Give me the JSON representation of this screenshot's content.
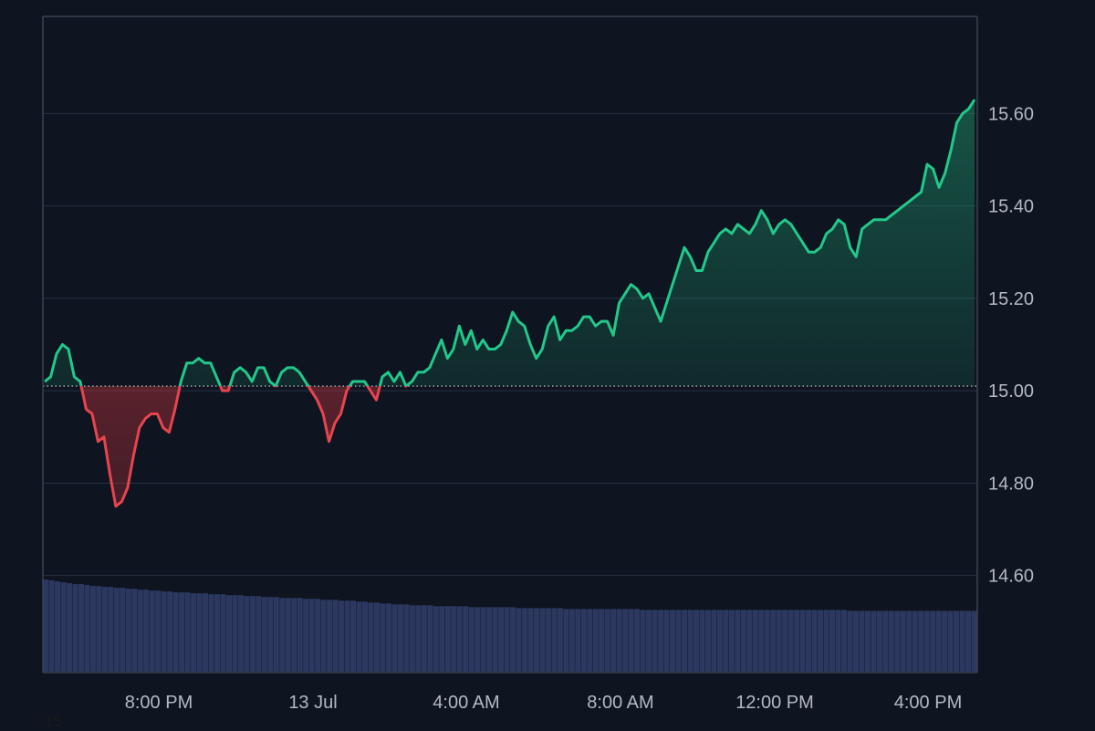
{
  "chart_data": {
    "type": "area",
    "title": "",
    "xlabel": "",
    "ylabel": "",
    "x_ticks": [
      "8:00 PM",
      "13 Jul",
      "4:00 AM",
      "8:00 AM",
      "12:00 PM",
      "4:00 PM"
    ],
    "y_ticks": [
      "14.60",
      "14.80",
      "15.00",
      "15.20",
      "15.40",
      "15.60"
    ],
    "y_tick_values": [
      14.6,
      14.8,
      15.0,
      15.2,
      15.4,
      15.6
    ],
    "ylim": [
      14.39,
      15.81
    ],
    "baseline": 15.01,
    "grid": true,
    "colors": {
      "background": "#0e1420",
      "grid": "#283142",
      "axis": "#3a4353",
      "above": "#22c88a",
      "below": "#e8444e",
      "volume": "#2c3860",
      "tick_text": "#b4bac4",
      "baseline": "#a8b0bc"
    },
    "price": [
      15.02,
      15.03,
      15.08,
      15.1,
      15.09,
      15.03,
      15.02,
      14.96,
      14.95,
      14.89,
      14.9,
      14.82,
      14.75,
      14.76,
      14.79,
      14.86,
      14.92,
      14.94,
      14.95,
      14.95,
      14.92,
      14.91,
      14.96,
      15.02,
      15.06,
      15.06,
      15.07,
      15.06,
      15.06,
      15.03,
      15.0,
      15.0,
      15.04,
      15.05,
      15.04,
      15.02,
      15.05,
      15.05,
      15.02,
      15.01,
      15.04,
      15.05,
      15.05,
      15.04,
      15.02,
      15.0,
      14.98,
      14.95,
      14.89,
      14.93,
      14.95,
      15.0,
      15.02,
      15.02,
      15.02,
      15.0,
      14.98,
      15.03,
      15.04,
      15.02,
      15.04,
      15.01,
      15.02,
      15.04,
      15.04,
      15.05,
      15.08,
      15.11,
      15.07,
      15.09,
      15.14,
      15.1,
      15.13,
      15.09,
      15.11,
      15.09,
      15.09,
      15.1,
      15.13,
      15.17,
      15.15,
      15.14,
      15.1,
      15.07,
      15.09,
      15.14,
      15.16,
      15.11,
      15.13,
      15.13,
      15.14,
      15.16,
      15.16,
      15.14,
      15.15,
      15.15,
      15.12,
      15.19,
      15.21,
      15.23,
      15.22,
      15.2,
      15.21,
      15.18,
      15.15,
      15.19,
      15.23,
      15.27,
      15.31,
      15.29,
      15.26,
      15.26,
      15.3,
      15.32,
      15.34,
      15.35,
      15.34,
      15.36,
      15.35,
      15.34,
      15.36,
      15.39,
      15.37,
      15.34,
      15.36,
      15.37,
      15.36,
      15.34,
      15.32,
      15.3,
      15.3,
      15.31,
      15.34,
      15.35,
      15.37,
      15.36,
      15.31,
      15.29,
      15.35,
      15.36,
      15.37,
      15.37,
      15.37,
      15.38,
      15.39,
      15.4,
      15.41,
      15.42,
      15.43,
      15.49,
      15.48,
      15.44,
      15.47,
      15.52,
      15.58,
      15.6,
      15.61,
      15.63
    ],
    "volume_rel": [
      1.0,
      0.99,
      0.98,
      0.97,
      0.96,
      0.95,
      0.95,
      0.94,
      0.93,
      0.93,
      0.92,
      0.92,
      0.91,
      0.91,
      0.9,
      0.9,
      0.89,
      0.89,
      0.88,
      0.88,
      0.87,
      0.87,
      0.86,
      0.86,
      0.86,
      0.85,
      0.85,
      0.85,
      0.84,
      0.84,
      0.84,
      0.83,
      0.83,
      0.83,
      0.82,
      0.82,
      0.82,
      0.81,
      0.81,
      0.81,
      0.8,
      0.8,
      0.8,
      0.8,
      0.79,
      0.79,
      0.79,
      0.78,
      0.78,
      0.78,
      0.77,
      0.77,
      0.77,
      0.76,
      0.76,
      0.75,
      0.75,
      0.74,
      0.74,
      0.73,
      0.73,
      0.73,
      0.72,
      0.72,
      0.72,
      0.72,
      0.71,
      0.71,
      0.71,
      0.71,
      0.71,
      0.71,
      0.7,
      0.7,
      0.7,
      0.7,
      0.7,
      0.7,
      0.7,
      0.7,
      0.69,
      0.69,
      0.69,
      0.69,
      0.69,
      0.69,
      0.69,
      0.69,
      0.68,
      0.68,
      0.68,
      0.68,
      0.68,
      0.68,
      0.68,
      0.68,
      0.68,
      0.68,
      0.68,
      0.68,
      0.68,
      0.67,
      0.67,
      0.67,
      0.67,
      0.67,
      0.67,
      0.67,
      0.67,
      0.67,
      0.67,
      0.67,
      0.67,
      0.67,
      0.67,
      0.67,
      0.67,
      0.67,
      0.67,
      0.67,
      0.67,
      0.67,
      0.67,
      0.67,
      0.67,
      0.67,
      0.67,
      0.67,
      0.67,
      0.67,
      0.67,
      0.67,
      0.67,
      0.67,
      0.67,
      0.67,
      0.66,
      0.66,
      0.66,
      0.66,
      0.66,
      0.66,
      0.66,
      0.66,
      0.66,
      0.66,
      0.66,
      0.66,
      0.66,
      0.66,
      0.66,
      0.66,
      0.66,
      0.66,
      0.66,
      0.66,
      0.66,
      0.66
    ],
    "corner_label": "15"
  }
}
